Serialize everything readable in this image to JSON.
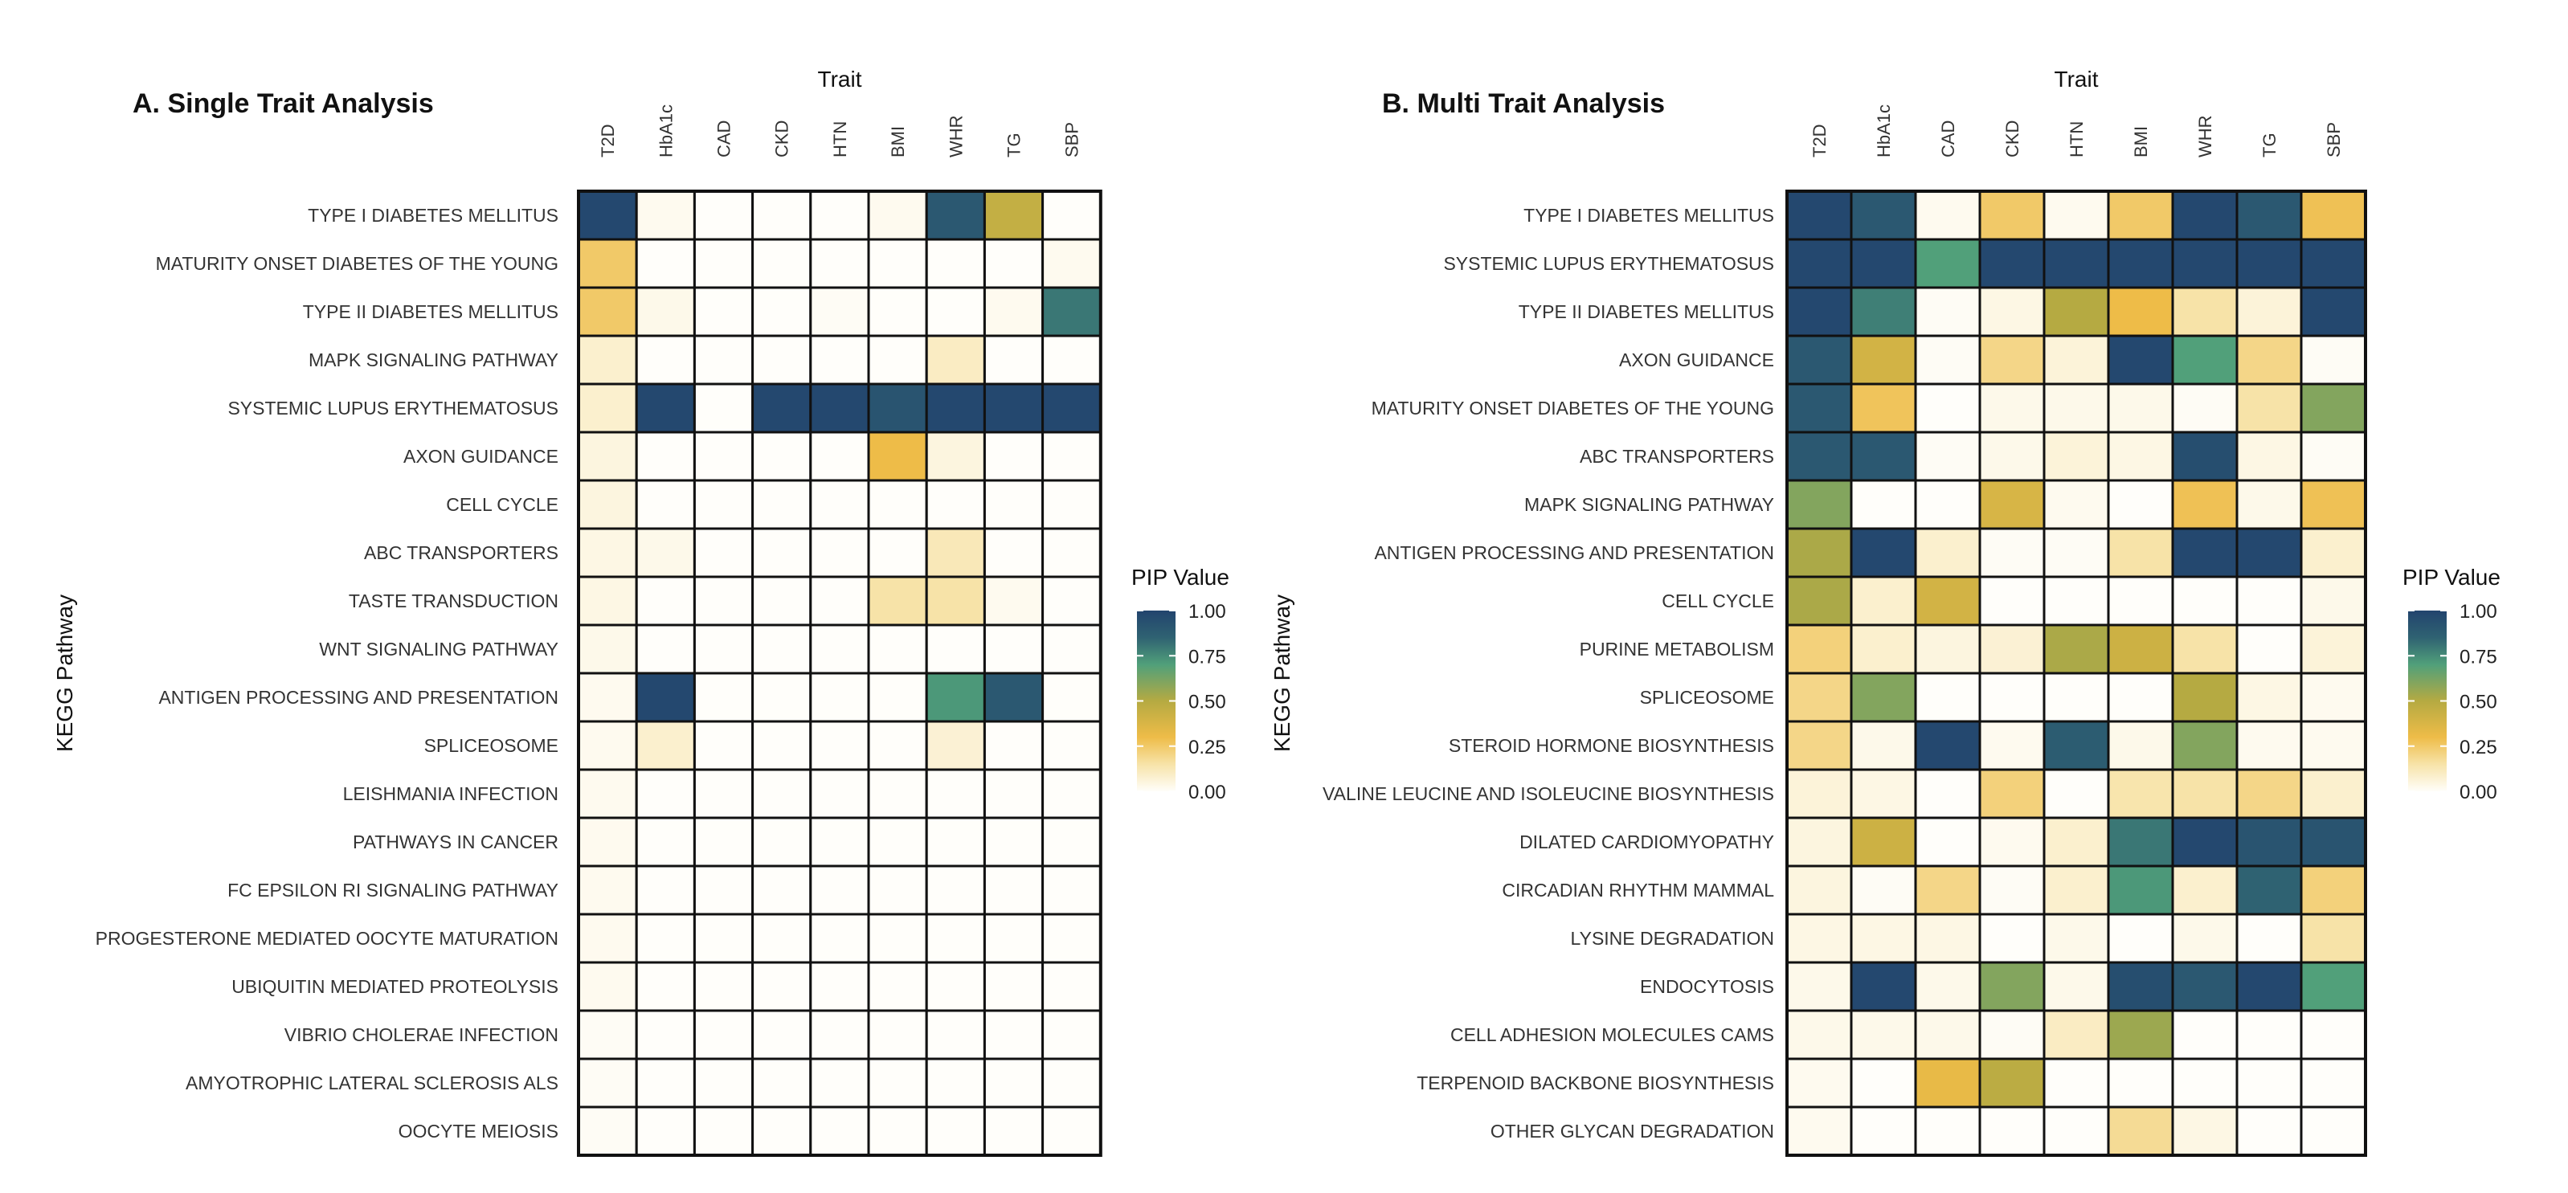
{
  "chart_data": [
    {
      "type": "heatmap",
      "title": "A. Single Trait Analysis",
      "xlabel": "Trait",
      "ylabel": "KEGG Pathway",
      "legend_title": "PIP Value",
      "legend_ticks": [
        "1.00",
        "0.75",
        "0.50",
        "0.25",
        "0.00"
      ],
      "legend_placement": "right",
      "value_range": [
        0,
        1
      ],
      "columns": [
        "T2D",
        "HbA1c",
        "CAD",
        "CKD",
        "HTN",
        "BMI",
        "WHR",
        "TG",
        "SBP"
      ],
      "rows": [
        "TYPE I DIABETES MELLITUS",
        "MATURITY ONSET DIABETES OF THE YOUNG",
        "TYPE II DIABETES MELLITUS",
        "MAPK SIGNALING PATHWAY",
        "SYSTEMIC LUPUS ERYTHEMATOSUS",
        "AXON GUIDANCE",
        "CELL CYCLE",
        "ABC TRANSPORTERS",
        "TASTE TRANSDUCTION",
        "WNT SIGNALING PATHWAY",
        "ANTIGEN PROCESSING AND PRESENTATION",
        "SPLICEOSOME",
        "LEISHMANIA INFECTION",
        "PATHWAYS IN CANCER",
        "FC EPSILON RI SIGNALING PATHWAY",
        "PROGESTERONE MEDIATED OOCYTE MATURATION",
        "UBIQUITIN MEDIATED PROTEOLYSIS",
        "VIBRIO CHOLERAE INFECTION",
        "AMYOTROPHIC LATERAL SCLEROSIS ALS",
        "OOCYTE MEIOSIS"
      ],
      "values": [
        [
          0.98,
          0.02,
          0,
          0,
          0,
          0.02,
          0.9,
          0.45,
          0
        ],
        [
          0.25,
          0,
          0,
          0,
          0,
          0,
          0,
          0,
          0.02
        ],
        [
          0.25,
          0.03,
          0,
          0,
          0.01,
          0,
          0,
          0.02,
          0.8
        ],
        [
          0.08,
          0,
          0,
          0,
          0,
          0,
          0.1,
          0,
          0
        ],
        [
          0.08,
          0.98,
          0,
          0.98,
          0.98,
          0.92,
          0.98,
          0.98,
          0.98
        ],
        [
          0.05,
          0,
          0,
          0,
          0,
          0.3,
          0.05,
          0,
          0
        ],
        [
          0.05,
          0,
          0,
          0,
          0,
          0,
          0,
          0,
          0
        ],
        [
          0.04,
          0.03,
          0,
          0,
          0,
          0,
          0.12,
          0,
          0
        ],
        [
          0.04,
          0,
          0,
          0,
          0,
          0.15,
          0.15,
          0.02,
          0
        ],
        [
          0.03,
          0,
          0,
          0,
          0,
          0,
          0,
          0,
          0
        ],
        [
          0.02,
          0.98,
          0,
          0,
          0,
          0,
          0.72,
          0.9,
          0
        ],
        [
          0.02,
          0.08,
          0,
          0,
          0,
          0,
          0.07,
          0,
          0
        ],
        [
          0.02,
          0,
          0,
          0,
          0,
          0,
          0,
          0,
          0
        ],
        [
          0.02,
          0,
          0,
          0,
          0,
          0,
          0,
          0,
          0
        ],
        [
          0.02,
          0,
          0,
          0,
          0,
          0,
          0,
          0,
          0
        ],
        [
          0.02,
          0,
          0,
          0,
          0,
          0,
          0,
          0,
          0
        ],
        [
          0.02,
          0,
          0,
          0,
          0,
          0,
          0,
          0,
          0
        ],
        [
          0.01,
          0,
          0,
          0,
          0,
          0,
          0,
          0,
          0
        ],
        [
          0.01,
          0,
          0,
          0,
          0,
          0,
          0,
          0,
          0
        ],
        [
          0.01,
          0,
          0,
          0,
          0,
          0,
          0,
          0,
          0
        ]
      ]
    },
    {
      "type": "heatmap",
      "title": "B. Multi Trait Analysis",
      "xlabel": "Trait",
      "ylabel": "KEGG Pathway",
      "legend_title": "PIP Value",
      "legend_ticks": [
        "1.00",
        "0.75",
        "0.50",
        "0.25",
        "0.00"
      ],
      "legend_placement": "right",
      "value_range": [
        0,
        1
      ],
      "columns": [
        "T2D",
        "HbA1c",
        "CAD",
        "CKD",
        "HTN",
        "BMI",
        "WHR",
        "TG",
        "SBP"
      ],
      "rows": [
        "TYPE I DIABETES MELLITUS",
        "SYSTEMIC LUPUS ERYTHEMATOSUS",
        "TYPE II DIABETES MELLITUS",
        "AXON GUIDANCE",
        "MATURITY ONSET DIABETES OF THE YOUNG",
        "ABC TRANSPORTERS",
        "MAPK SIGNALING PATHWAY",
        "ANTIGEN PROCESSING AND PRESENTATION",
        "CELL CYCLE",
        "PURINE METABOLISM",
        "SPLICEOSOME",
        "STEROID HORMONE BIOSYNTHESIS",
        "VALINE LEUCINE AND ISOLEUCINE BIOSYNTHESIS",
        "DILATED CARDIOMYOPATHY",
        "CIRCADIAN RHYTHM MAMMAL",
        "LYSINE DEGRADATION",
        "ENDOCYTOSIS",
        "CELL ADHESION MOLECULES CAMS",
        "TERPENOID BACKBONE BIOSYNTHESIS",
        "OTHER GLYCAN DEGRADATION"
      ],
      "values": [
        [
          0.98,
          0.9,
          0.02,
          0.25,
          0.02,
          0.25,
          0.98,
          0.9,
          0.28
        ],
        [
          0.98,
          0.98,
          0.7,
          0.98,
          0.98,
          0.98,
          0.98,
          0.98,
          0.98
        ],
        [
          0.98,
          0.78,
          0.01,
          0.04,
          0.5,
          0.3,
          0.15,
          0.06,
          0.98
        ],
        [
          0.9,
          0.4,
          0.01,
          0.2,
          0.06,
          0.98,
          0.7,
          0.2,
          0.01
        ],
        [
          0.9,
          0.27,
          0,
          0.03,
          0.03,
          0.03,
          0.01,
          0.15,
          0.6
        ],
        [
          0.9,
          0.9,
          0.01,
          0.03,
          0.06,
          0.04,
          0.95,
          0.04,
          0.01
        ],
        [
          0.6,
          0,
          0,
          0.38,
          0.02,
          0,
          0.28,
          0.03,
          0.28
        ],
        [
          0.52,
          0.98,
          0.08,
          0.01,
          0.01,
          0.15,
          0.98,
          0.98,
          0.08
        ],
        [
          0.52,
          0.08,
          0.4,
          0,
          0,
          0,
          0,
          0,
          0.03
        ],
        [
          0.22,
          0.08,
          0.05,
          0.07,
          0.52,
          0.42,
          0.15,
          0,
          0.06
        ],
        [
          0.2,
          0.6,
          0,
          0,
          0,
          0,
          0.5,
          0.04,
          0.02
        ],
        [
          0.2,
          0.03,
          0.98,
          0.02,
          0.88,
          0.03,
          0.6,
          0.02,
          0.02
        ],
        [
          0.06,
          0.04,
          0,
          0.22,
          0,
          0.14,
          0.15,
          0.2,
          0.08
        ],
        [
          0.05,
          0.42,
          0,
          0.02,
          0.08,
          0.8,
          0.98,
          0.92,
          0.92
        ],
        [
          0.05,
          0.01,
          0.2,
          0.01,
          0.08,
          0.72,
          0.08,
          0.85,
          0.22
        ],
        [
          0.04,
          0.04,
          0.04,
          0,
          0.03,
          0,
          0.03,
          0,
          0.15
        ],
        [
          0.03,
          0.98,
          0.03,
          0.6,
          0.03,
          0.95,
          0.9,
          0.98,
          0.7
        ],
        [
          0.03,
          0.03,
          0.03,
          0.01,
          0.1,
          0.55,
          0,
          0,
          0
        ],
        [
          0.02,
          0,
          0.32,
          0.48,
          0,
          0,
          0,
          0,
          0
        ],
        [
          0.02,
          0,
          0,
          0,
          0,
          0.18,
          0.04,
          0,
          0
        ]
      ]
    }
  ],
  "color_scale": {
    "stops": [
      0,
      0.15,
      0.3,
      0.5,
      0.7,
      0.85,
      1
    ],
    "colors": [
      "#FFFEFA",
      "#F7E3A8",
      "#EEBC48",
      "#B5AA42",
      "#51A07A",
      "#2F6272",
      "#22446E"
    ]
  }
}
